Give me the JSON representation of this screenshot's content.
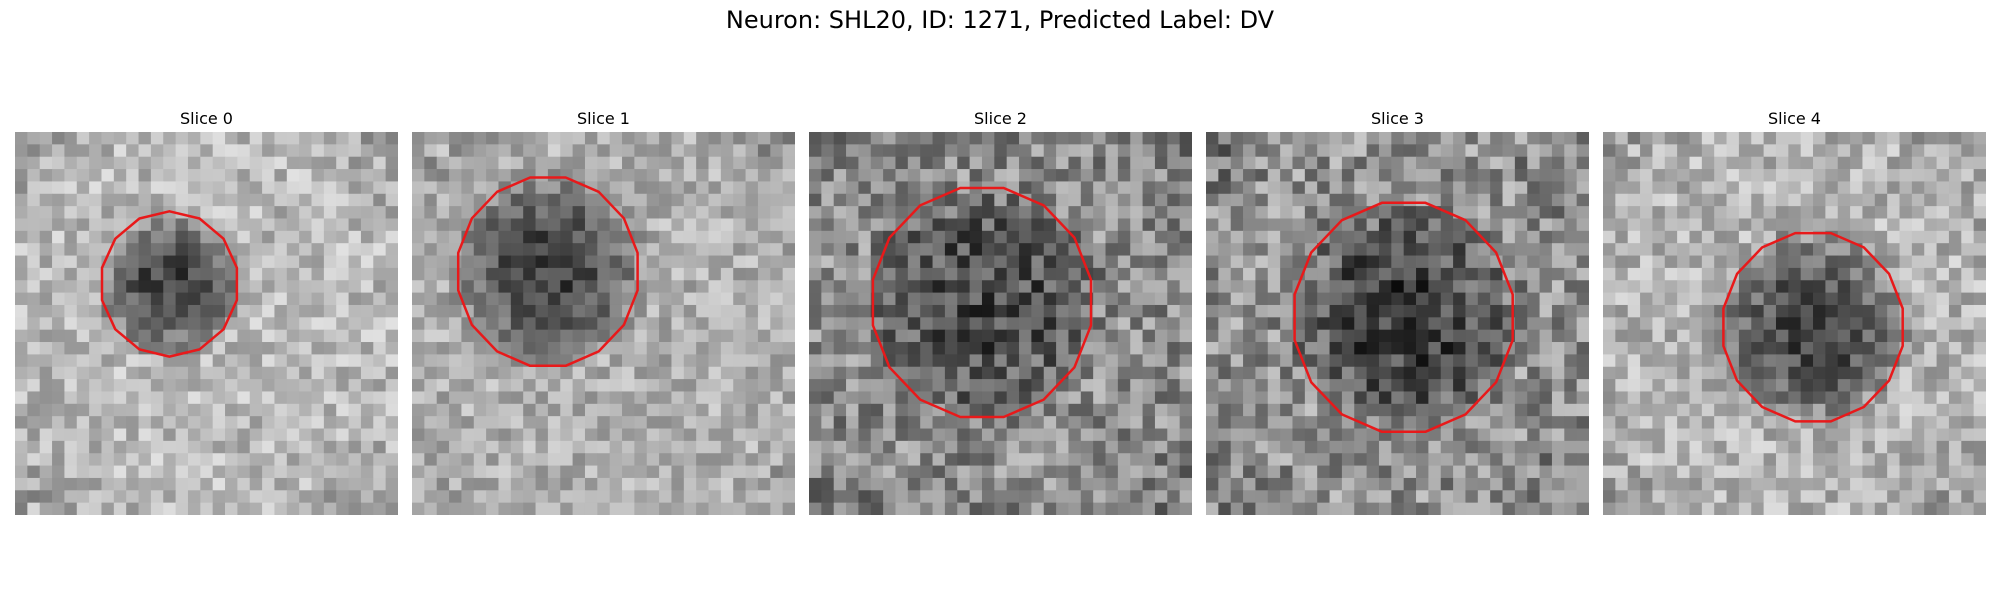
{
  "figure": {
    "title": "Neuron: SHL20, ID: 1271, Predicted Label: DV"
  },
  "contour_color": "#e8191a",
  "colormap": "grayscale",
  "panels": [
    {
      "title": "Slice 0"
    },
    {
      "title": "Slice 1"
    },
    {
      "title": "Slice 2"
    },
    {
      "title": "Slice 3"
    },
    {
      "title": "Slice 4"
    }
  ]
}
